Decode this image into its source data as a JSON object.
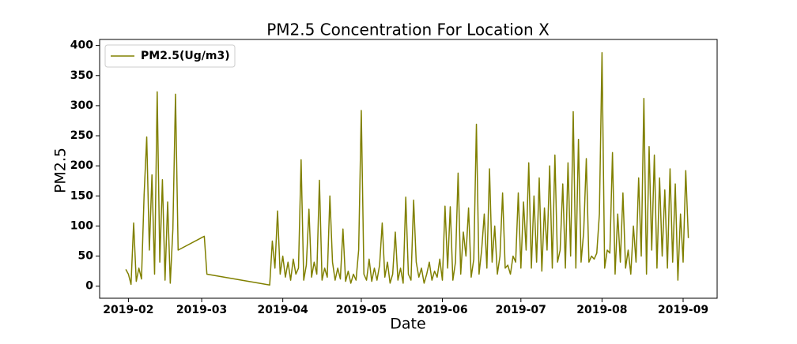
{
  "chart_data": {
    "type": "line",
    "title": "PM2.5 Concentration For Location X",
    "xlabel": "Date",
    "ylabel": "PM2.5",
    "xlim": [
      "2019-01-21",
      "2019-09-14"
    ],
    "ylim": [
      -20,
      410
    ],
    "xticks": [
      {
        "value": "2019-02-01",
        "label": "2019-02"
      },
      {
        "value": "2019-03-01",
        "label": "2019-03"
      },
      {
        "value": "2019-04-01",
        "label": "2019-04"
      },
      {
        "value": "2019-05-01",
        "label": "2019-05"
      },
      {
        "value": "2019-06-01",
        "label": "2019-06"
      },
      {
        "value": "2019-07-01",
        "label": "2019-07"
      },
      {
        "value": "2019-08-01",
        "label": "2019-08"
      },
      {
        "value": "2019-09-01",
        "label": "2019-09"
      }
    ],
    "yticks": [
      0,
      50,
      100,
      150,
      200,
      250,
      300,
      350,
      400
    ],
    "legend": "upper left",
    "x": [
      "2019-01-31",
      "2019-02-01",
      "2019-02-02",
      "2019-02-03",
      "2019-02-04",
      "2019-02-05",
      "2019-02-06",
      "2019-02-07",
      "2019-02-08",
      "2019-02-09",
      "2019-02-10",
      "2019-02-11",
      "2019-02-12",
      "2019-02-13",
      "2019-02-14",
      "2019-02-15",
      "2019-02-16",
      "2019-02-17",
      "2019-02-18",
      "2019-02-19",
      "2019-02-20",
      "2019-03-02",
      "2019-03-03",
      "2019-03-27",
      "2019-03-28",
      "2019-03-29",
      "2019-03-30",
      "2019-03-31",
      "2019-04-01",
      "2019-04-02",
      "2019-04-03",
      "2019-04-04",
      "2019-04-05",
      "2019-04-06",
      "2019-04-07",
      "2019-04-08",
      "2019-04-09",
      "2019-04-10",
      "2019-04-11",
      "2019-04-12",
      "2019-04-13",
      "2019-04-14",
      "2019-04-15",
      "2019-04-16",
      "2019-04-17",
      "2019-04-18",
      "2019-04-19",
      "2019-04-20",
      "2019-04-21",
      "2019-04-22",
      "2019-04-23",
      "2019-04-24",
      "2019-04-25",
      "2019-04-26",
      "2019-04-27",
      "2019-04-28",
      "2019-04-29",
      "2019-04-30",
      "2019-05-01",
      "2019-05-02",
      "2019-05-03",
      "2019-05-04",
      "2019-05-05",
      "2019-05-06",
      "2019-05-07",
      "2019-05-08",
      "2019-05-09",
      "2019-05-10",
      "2019-05-11",
      "2019-05-12",
      "2019-05-13",
      "2019-05-14",
      "2019-05-15",
      "2019-05-16",
      "2019-05-17",
      "2019-05-18",
      "2019-05-19",
      "2019-05-20",
      "2019-05-21",
      "2019-05-22",
      "2019-05-23",
      "2019-05-24",
      "2019-05-25",
      "2019-05-26",
      "2019-05-27",
      "2019-05-28",
      "2019-05-29",
      "2019-05-30",
      "2019-05-31",
      "2019-06-01",
      "2019-06-02",
      "2019-06-03",
      "2019-06-04",
      "2019-06-05",
      "2019-06-06",
      "2019-06-07",
      "2019-06-08",
      "2019-06-09",
      "2019-06-10",
      "2019-06-11",
      "2019-06-12",
      "2019-06-13",
      "2019-06-14",
      "2019-06-15",
      "2019-06-16",
      "2019-06-17",
      "2019-06-18",
      "2019-06-19",
      "2019-06-20",
      "2019-06-21",
      "2019-06-22",
      "2019-06-23",
      "2019-06-24",
      "2019-06-25",
      "2019-06-26",
      "2019-06-27",
      "2019-06-28",
      "2019-06-29",
      "2019-06-30",
      "2019-07-01",
      "2019-07-02",
      "2019-07-03",
      "2019-07-04",
      "2019-07-05",
      "2019-07-06",
      "2019-07-07",
      "2019-07-08",
      "2019-07-09",
      "2019-07-10",
      "2019-07-11",
      "2019-07-12",
      "2019-07-13",
      "2019-07-14",
      "2019-07-15",
      "2019-07-16",
      "2019-07-17",
      "2019-07-18",
      "2019-07-19",
      "2019-07-20",
      "2019-07-21",
      "2019-07-22",
      "2019-07-23",
      "2019-07-24",
      "2019-07-25",
      "2019-07-26",
      "2019-07-27",
      "2019-07-28",
      "2019-07-29",
      "2019-07-30",
      "2019-07-31",
      "2019-08-01",
      "2019-08-02",
      "2019-08-03",
      "2019-08-04",
      "2019-08-05",
      "2019-08-06",
      "2019-08-07",
      "2019-08-08",
      "2019-08-09",
      "2019-08-10",
      "2019-08-11",
      "2019-08-12",
      "2019-08-13",
      "2019-08-14",
      "2019-08-15",
      "2019-08-16",
      "2019-08-17",
      "2019-08-18",
      "2019-08-19",
      "2019-08-20",
      "2019-08-21",
      "2019-08-22",
      "2019-08-23",
      "2019-08-24",
      "2019-08-25",
      "2019-08-26",
      "2019-08-27",
      "2019-08-28",
      "2019-08-29",
      "2019-08-30",
      "2019-08-31",
      "2019-09-01",
      "2019-09-02",
      "2019-09-03"
    ],
    "series": [
      {
        "name": "PM2.5(Ug/m3)",
        "color": "#808000",
        "values": [
          28,
          20,
          3,
          105,
          8,
          30,
          12,
          152,
          248,
          60,
          185,
          20,
          323,
          40,
          177,
          10,
          140,
          5,
          95,
          319,
          60,
          83,
          20,
          2,
          75,
          30,
          125,
          20,
          50,
          15,
          40,
          10,
          45,
          20,
          30,
          210,
          10,
          35,
          128,
          15,
          40,
          20,
          176,
          10,
          30,
          15,
          150,
          40,
          10,
          30,
          12,
          95,
          8,
          25,
          5,
          20,
          10,
          60,
          292,
          20,
          10,
          45,
          8,
          30,
          10,
          35,
          105,
          15,
          40,
          5,
          20,
          90,
          10,
          30,
          5,
          148,
          20,
          10,
          143,
          40,
          15,
          30,
          5,
          20,
          40,
          10,
          25,
          15,
          45,
          10,
          133,
          30,
          132,
          10,
          40,
          188,
          20,
          90,
          50,
          130,
          15,
          45,
          269,
          20,
          60,
          120,
          30,
          195,
          40,
          100,
          20,
          50,
          155,
          30,
          35,
          20,
          50,
          40,
          155,
          30,
          140,
          60,
          205,
          30,
          150,
          40,
          180,
          25,
          130,
          60,
          200,
          30,
          218,
          40,
          60,
          170,
          30,
          205,
          50,
          290,
          30,
          244,
          40,
          90,
          212,
          40,
          50,
          45,
          55,
          120,
          388,
          30,
          60,
          55,
          222,
          20,
          120,
          40,
          155,
          30,
          60,
          20,
          100,
          40,
          180,
          50,
          312,
          20,
          232,
          60,
          218,
          30,
          180,
          50,
          160,
          30,
          195,
          40,
          170,
          10,
          120,
          40,
          192,
          80
        ]
      }
    ]
  }
}
